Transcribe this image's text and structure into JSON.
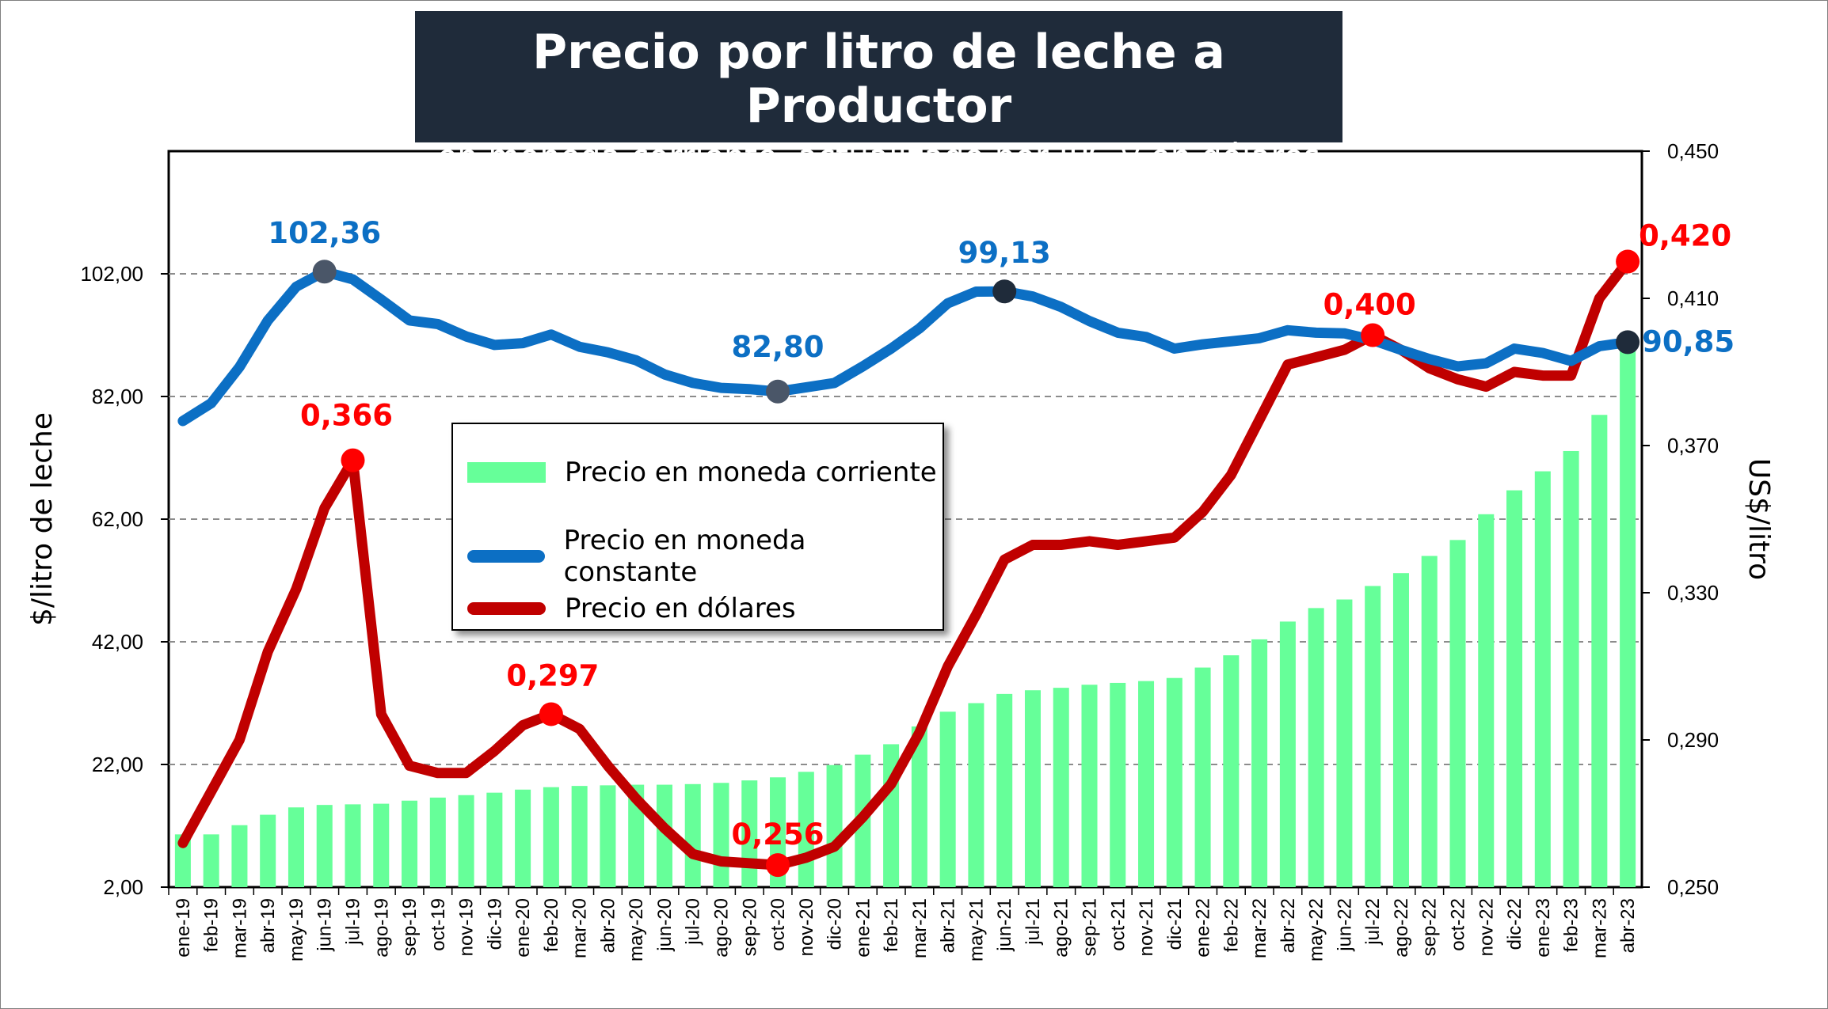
{
  "title": "Precio por litro de leche a Productor",
  "subtitle": "- en moneda corriente, actualizado por IPC y en dólares -",
  "legend": {
    "corriente": "Precio en moneda corriente",
    "constante": "Precio en moneda constante",
    "dolares": "Precio en dólares"
  },
  "colors": {
    "corriente": "#66ff99",
    "constante": "#0c6fc4",
    "dolares": "#c00000",
    "marker_dark": "#1f2b3a",
    "label_blue": "#0c6fc4",
    "label_red": "#ff0000",
    "title_bg": "#1f2b3a"
  },
  "chart_data": {
    "type": "bar+line",
    "title": "Precio por litro de leche a Productor",
    "subtitle": "- en moneda corriente, actualizado por IPC y en dólares -",
    "ylabel": "$/litro de leche",
    "y2label": "US$/litro",
    "ylim": [
      2,
      122
    ],
    "y2lim": [
      0.25,
      0.45
    ],
    "yticks": [
      "2,00",
      "22,00",
      "42,00",
      "62,00",
      "82,00",
      "102,00"
    ],
    "y2ticks": [
      "0,250",
      "0,290",
      "0,330",
      "0,370",
      "0,410",
      "0,450"
    ],
    "grid": "horizontal dashed",
    "legend_position": "center-left",
    "categories": [
      "ene-19",
      "feb-19",
      "mar-19",
      "abr-19",
      "may-19",
      "jun-19",
      "jul-19",
      "ago-19",
      "sep-19",
      "oct-19",
      "nov-19",
      "dic-19",
      "ene-20",
      "feb-20",
      "mar-20",
      "abr-20",
      "may-20",
      "jun-20",
      "jul-20",
      "ago-20",
      "sep-20",
      "oct-20",
      "nov-20",
      "dic-20",
      "ene-21",
      "feb-21",
      "mar-21",
      "abr-21",
      "may-21",
      "jun-21",
      "jul-21",
      "ago-21",
      "sep-21",
      "oct-21",
      "nov-21",
      "dic-21",
      "ene-22",
      "feb-22",
      "mar-22",
      "abr-22",
      "may-22",
      "jun-22",
      "jul-22",
      "ago-22",
      "sep-22",
      "oct-22",
      "nov-22",
      "dic-22",
      "ene-23",
      "feb-23",
      "mar-23",
      "abr-23"
    ],
    "series": [
      {
        "name": "Precio en moneda corriente",
        "type": "bar",
        "axis": "left",
        "values": [
          10.6,
          10.6,
          12.1,
          13.8,
          15.0,
          15.4,
          15.5,
          15.6,
          16.1,
          16.6,
          17.0,
          17.4,
          17.9,
          18.3,
          18.5,
          18.6,
          18.7,
          18.7,
          18.8,
          19.0,
          19.4,
          19.9,
          20.8,
          21.9,
          23.6,
          25.3,
          28.2,
          30.6,
          32.0,
          33.5,
          34.1,
          34.5,
          35.0,
          35.3,
          35.6,
          36.1,
          37.8,
          39.8,
          42.4,
          45.3,
          47.5,
          48.9,
          51.1,
          53.2,
          56.0,
          58.6,
          62.8,
          66.7,
          69.8,
          73.1,
          79.0,
          92.0
        ]
      },
      {
        "name": "Precio en moneda constante",
        "type": "line",
        "axis": "left",
        "values": [
          78.0,
          80.9,
          86.8,
          94.4,
          99.9,
          102.36,
          101.1,
          97.8,
          94.4,
          93.8,
          91.8,
          90.4,
          90.7,
          92.1,
          90.1,
          89.2,
          87.9,
          85.6,
          84.2,
          83.4,
          83.2,
          82.8,
          83.5,
          84.2,
          86.9,
          89.8,
          93.1,
          97.2,
          99.1,
          99.13,
          98.3,
          96.6,
          94.3,
          92.4,
          91.7,
          89.8,
          90.5,
          91.0,
          91.5,
          92.8,
          92.4,
          92.3,
          91.2,
          89.6,
          88.1,
          86.9,
          87.4,
          89.8,
          89.1,
          87.8,
          90.2,
          90.85
        ]
      },
      {
        "name": "Precio en dólares",
        "type": "line",
        "axis": "right",
        "values": [
          0.262,
          0.276,
          0.29,
          0.314,
          0.331,
          0.353,
          0.366,
          0.297,
          0.283,
          0.281,
          0.281,
          0.287,
          0.294,
          0.297,
          0.293,
          0.283,
          0.274,
          0.266,
          0.259,
          0.257,
          0.2565,
          0.256,
          0.258,
          0.261,
          0.269,
          0.278,
          0.292,
          0.31,
          0.324,
          0.339,
          0.343,
          0.343,
          0.344,
          0.343,
          0.344,
          0.345,
          0.352,
          0.362,
          0.377,
          0.392,
          0.394,
          0.396,
          0.4,
          0.396,
          0.391,
          0.388,
          0.386,
          0.39,
          0.389,
          0.389,
          0.41,
          0.42
        ]
      }
    ],
    "annotations": [
      {
        "series": "Precio en moneda constante",
        "category": "jun-19",
        "text": "102,36"
      },
      {
        "series": "Precio en moneda constante",
        "category": "oct-20",
        "text": "82,80"
      },
      {
        "series": "Precio en moneda constante",
        "category": "jun-21",
        "text": "99,13"
      },
      {
        "series": "Precio en moneda constante",
        "category": "abr-23",
        "text": "90,85"
      },
      {
        "series": "Precio en dólares",
        "category": "jul-19",
        "text": "0,366"
      },
      {
        "series": "Precio en dólares",
        "category": "feb-20",
        "text": "0,297"
      },
      {
        "series": "Precio en dólares",
        "category": "oct-20",
        "text": "0,256"
      },
      {
        "series": "Precio en dólares",
        "category": "jul-22",
        "text": "0,400"
      },
      {
        "series": "Precio en dólares",
        "category": "abr-23",
        "text": "0,420"
      }
    ]
  }
}
